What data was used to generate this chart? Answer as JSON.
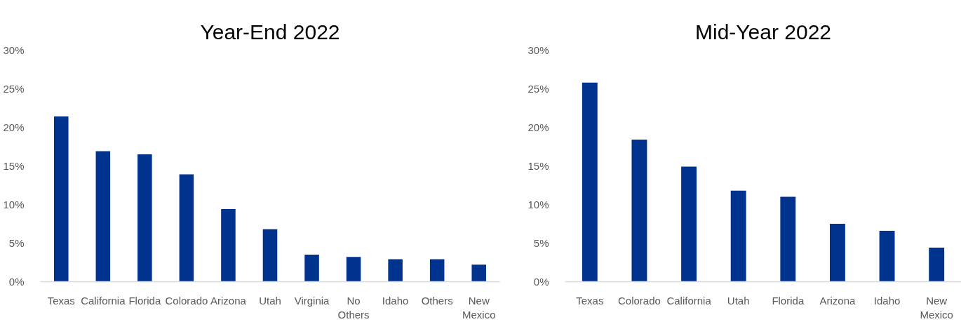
{
  "chart_data": [
    {
      "type": "bar",
      "title": "Year-End 2022",
      "categories": [
        "Texas",
        "California",
        "Florida",
        "Colorado",
        "Arizona",
        "Utah",
        "Virginia",
        "No Others",
        "Idaho",
        "Others",
        "New Mexico"
      ],
      "values": [
        21.4,
        16.9,
        16.5,
        13.9,
        9.4,
        6.8,
        3.5,
        3.2,
        2.9,
        2.9,
        2.2
      ],
      "color": "#00338d",
      "ylim": [
        0,
        30
      ],
      "yticks": [
        {
          "value": 0,
          "label": "0%"
        },
        {
          "value": 5,
          "label": "5%"
        },
        {
          "value": 10,
          "label": "10%"
        },
        {
          "value": 15,
          "label": "15%"
        },
        {
          "value": 20,
          "label": "20%"
        },
        {
          "value": 25,
          "label": "25%"
        },
        {
          "value": 30,
          "label": "30%"
        }
      ]
    },
    {
      "type": "bar",
      "title": "Mid-Year 2022",
      "categories": [
        "Texas",
        "Colorado",
        "California",
        "Utah",
        "Florida",
        "Arizona",
        "Idaho",
        "New Mexico"
      ],
      "values": [
        25.8,
        18.4,
        14.9,
        11.8,
        11.0,
        7.5,
        6.6,
        4.4
      ],
      "color": "#00338d",
      "ylim": [
        0,
        30
      ],
      "yticks": [
        {
          "value": 0,
          "label": "0%"
        },
        {
          "value": 5,
          "label": "5%"
        },
        {
          "value": 10,
          "label": "10%"
        },
        {
          "value": 15,
          "label": "15%"
        },
        {
          "value": 20,
          "label": "20%"
        },
        {
          "value": 25,
          "label": "25%"
        },
        {
          "value": 30,
          "label": "30%"
        }
      ]
    }
  ]
}
